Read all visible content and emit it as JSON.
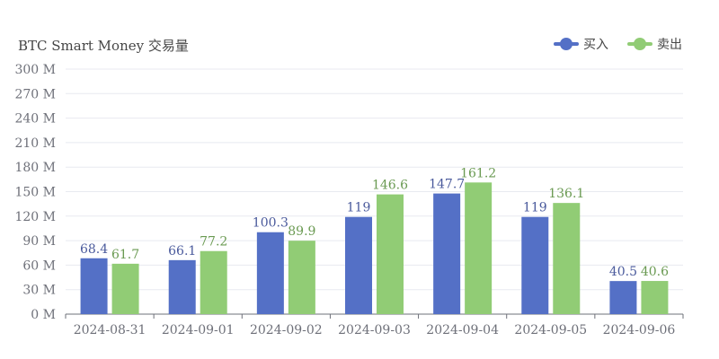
{
  "chart_data": {
    "type": "bar",
    "title": "BTC Smart Money 交易量",
    "xlabel": "",
    "ylabel": "",
    "categories": [
      "2024-08-31",
      "2024-09-01",
      "2024-09-02",
      "2024-09-03",
      "2024-09-04",
      "2024-09-05",
      "2024-09-06"
    ],
    "series": [
      {
        "name": "买入",
        "color": "#5470c6",
        "label_color": "#4a5a9c",
        "values": [
          68.4,
          66.1,
          100.3,
          119,
          147.7,
          119,
          40.5
        ]
      },
      {
        "name": "卖出",
        "color": "#91cc75",
        "label_color": "#6a9a52",
        "values": [
          61.7,
          77.2,
          89.9,
          146.6,
          161.2,
          136.1,
          40.6
        ]
      }
    ],
    "ylim": [
      0,
      300
    ],
    "yticks": [
      0,
      30,
      60,
      90,
      120,
      150,
      180,
      210,
      240,
      270,
      300
    ],
    "ytick_labels": [
      "0 M",
      "30 M",
      "60 M",
      "90 M",
      "120 M",
      "150 M",
      "180 M",
      "210 M",
      "240 M",
      "270 M",
      "300 M"
    ],
    "grid": true,
    "legend_position": "top-right"
  }
}
